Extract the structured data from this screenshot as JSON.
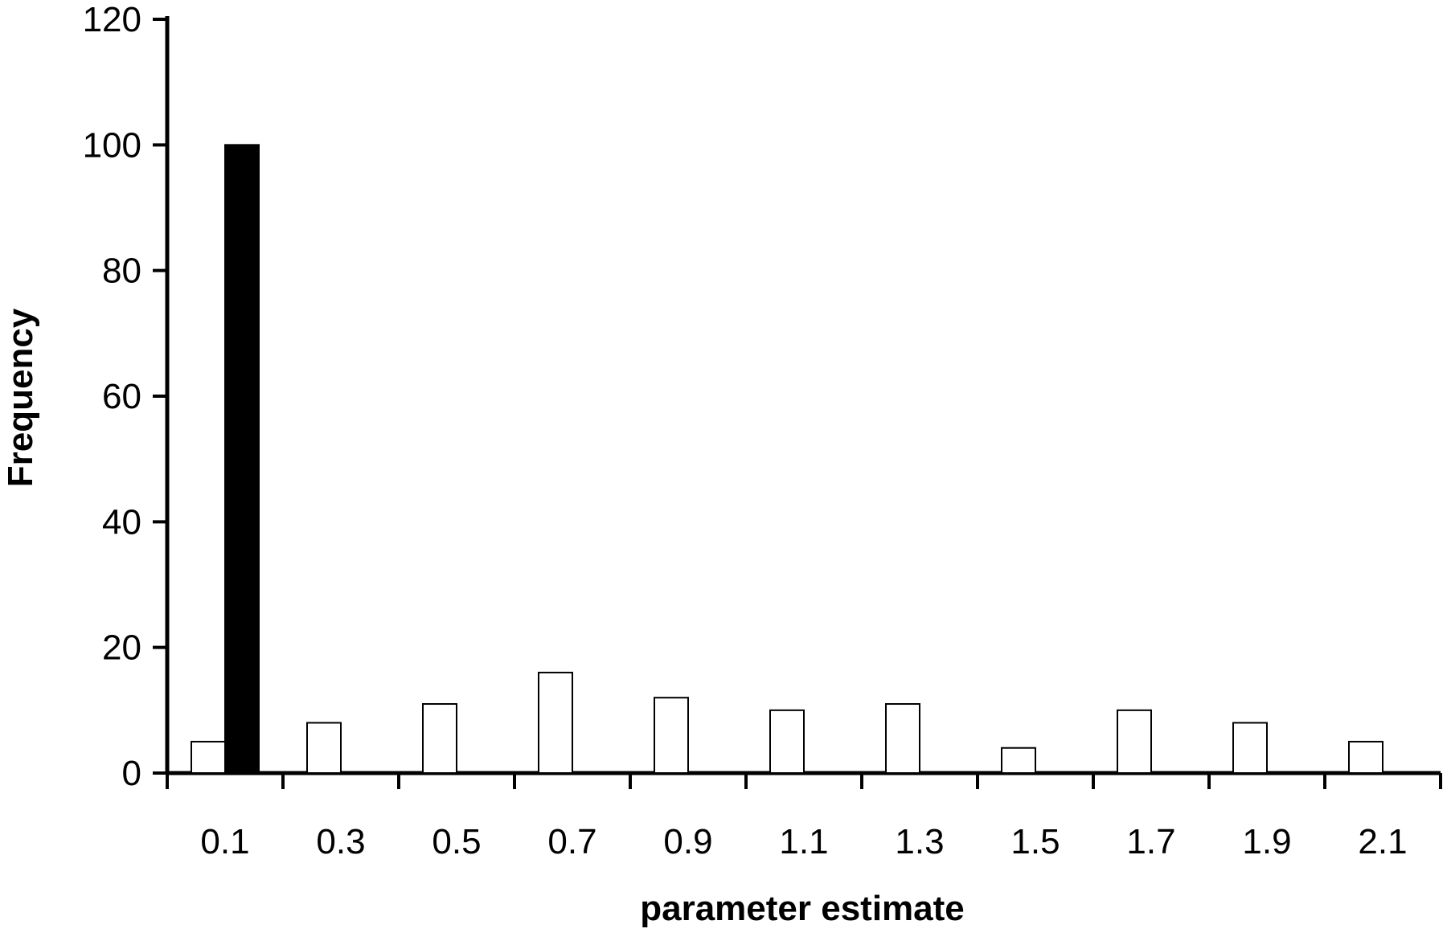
{
  "chart_data": {
    "type": "bar",
    "title": "",
    "xlabel": "parameter estimate",
    "ylabel": "Frequency",
    "categories": [
      "0.1",
      "0.3",
      "0.5",
      "0.7",
      "0.9",
      "1.1",
      "1.3",
      "1.5",
      "1.7",
      "1.9",
      "2.1"
    ],
    "series": [
      {
        "fill": "#ffffff",
        "values": [
          5,
          8,
          11,
          16,
          12,
          10,
          11,
          4,
          10,
          8,
          5
        ]
      },
      {
        "fill": "#000000",
        "values": [
          100,
          0,
          0,
          0,
          0,
          0,
          0,
          0,
          0,
          0,
          0
        ]
      }
    ],
    "ylim": [
      0,
      120
    ],
    "yticks": [
      0,
      20,
      40,
      60,
      80,
      100,
      120
    ],
    "grid": false,
    "legend": "none"
  }
}
